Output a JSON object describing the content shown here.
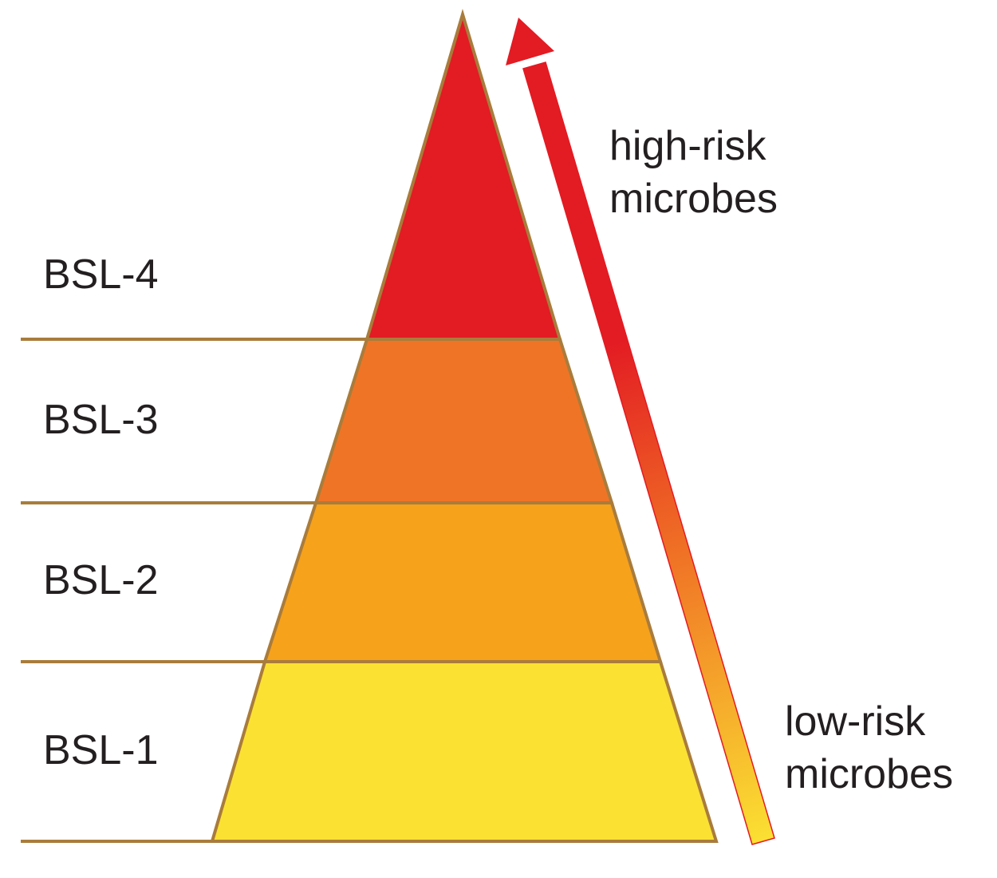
{
  "levels": [
    {
      "label": "BSL-4",
      "color": "#e31b23"
    },
    {
      "label": "BSL-3",
      "color": "#f07425"
    },
    {
      "label": "BSL-2",
      "color": "#f7a21b"
    },
    {
      "label": "BSL-1",
      "color": "#fbe132"
    }
  ],
  "outline_color": "#a97c3c",
  "arrow": {
    "color_top": "#e31b23",
    "color_mid": "#f07425",
    "color_bottom": "#fbe132"
  },
  "high_risk": {
    "line1": "high-risk",
    "line2": "microbes"
  },
  "low_risk": {
    "line1": "low-risk",
    "line2": "microbes"
  }
}
